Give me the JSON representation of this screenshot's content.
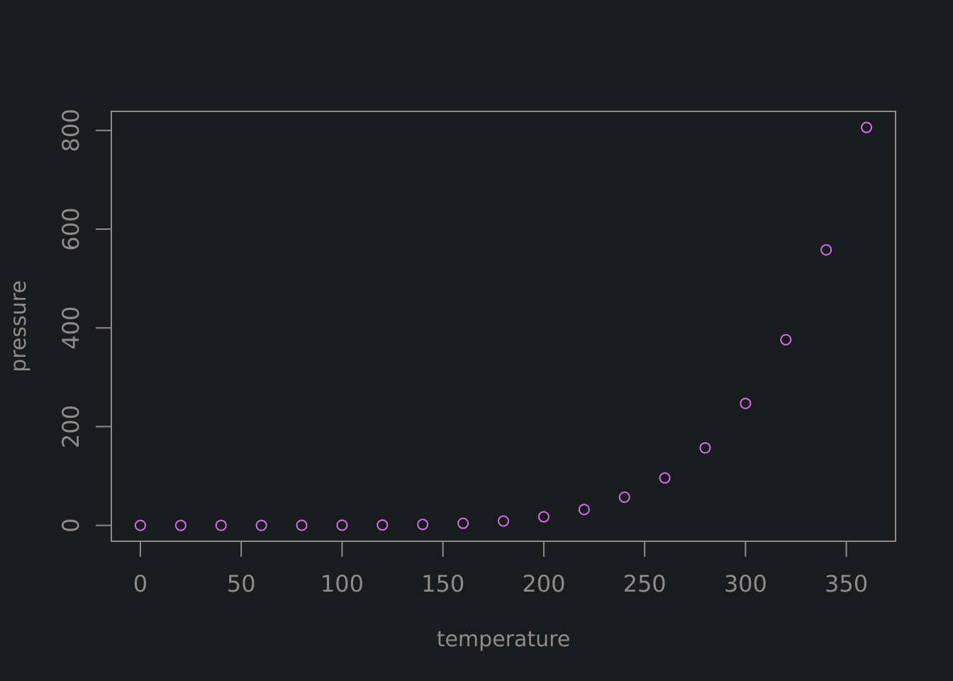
{
  "colors": {
    "background": "#1a1b1d",
    "axis": "#8c8c8c",
    "point": "#d070e8"
  },
  "chart_data": {
    "type": "scatter",
    "title": "",
    "xlabel": "temperature",
    "ylabel": "pressure",
    "xlim": [
      -14.4,
      374.4
    ],
    "ylim": [
      -32.2,
      838.6
    ],
    "xticks": [
      0,
      50,
      100,
      150,
      200,
      250,
      300,
      350
    ],
    "yticks": [
      0,
      200,
      400,
      600,
      800
    ],
    "grid": false,
    "marker": "open-circle",
    "series": [
      {
        "x": [
          0,
          20,
          40,
          60,
          80,
          100,
          120,
          140,
          160,
          180,
          200,
          220,
          240,
          260,
          280,
          300,
          320,
          340,
          360
        ],
        "y": [
          0.0002,
          0.0012,
          0.006,
          0.03,
          0.09,
          0.27,
          0.75,
          1.85,
          4.2,
          8.8,
          17.3,
          32.1,
          57,
          96,
          157,
          247,
          376,
          558,
          806
        ]
      }
    ]
  }
}
